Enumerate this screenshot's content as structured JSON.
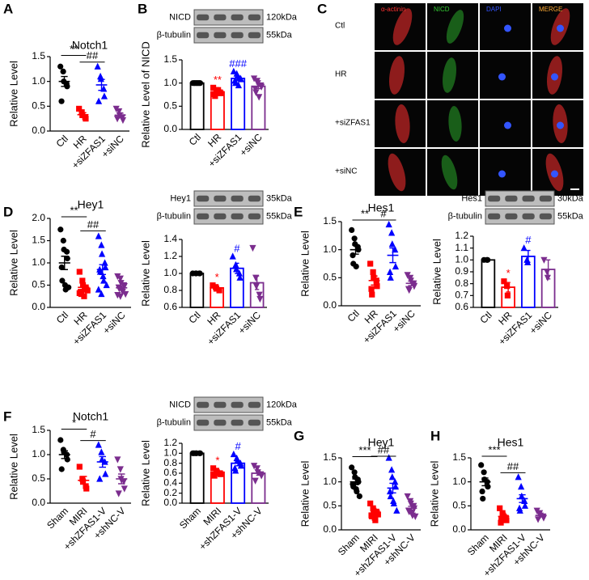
{
  "panel_letters": [
    "A",
    "B",
    "C",
    "D",
    "E",
    "F",
    "G",
    "H"
  ],
  "microscopy": {
    "columns": [
      "α-actinin",
      "NICD",
      "DAPI",
      "MERGE"
    ],
    "column_colors": [
      "#ff3030",
      "#33cc33",
      "#3355ff",
      "#ffaa33"
    ],
    "rows": [
      "Ctl",
      "HR",
      "+siZFAS1",
      "+siNC"
    ]
  },
  "chart_data": [
    {
      "type": "dot",
      "title": "Notch1",
      "ylabel": "Relative Level",
      "categories": [
        "Ctl",
        "HR",
        "+siZFAS1",
        "+siNC"
      ],
      "colors": [
        "#000000",
        "#ff0000",
        "#0000ff",
        "#7b2d8e"
      ],
      "markers": [
        "circle",
        "square",
        "triangle-up",
        "triangle-down"
      ],
      "points": [
        [
          1.3,
          1.2,
          1.0,
          0.95,
          0.9,
          0.6
        ],
        [
          0.45,
          0.38,
          0.32,
          0.28,
          0.25
        ],
        [
          1.3,
          1.1,
          1.05,
          0.85,
          0.7,
          0.6
        ],
        [
          0.45,
          0.4,
          0.32,
          0.28,
          0.22,
          0.25
        ]
      ],
      "means": [
        1.0,
        0.33,
        0.93,
        0.32
      ],
      "errors": [
        0.1,
        0.04,
        0.11,
        0.04
      ],
      "ylim": [
        0,
        1.5
      ],
      "yticks": [
        {
          "value": 0,
          "label": "0.0"
        },
        0.5,
        {
          "value": 1,
          "label": "1.0"
        },
        1.5
      ],
      "annotations": [
        {
          "label": "**",
          "between": [
            "Ctl",
            "HR"
          ]
        },
        {
          "label": "##",
          "between": [
            "HR",
            "+siZFAS1"
          ]
        }
      ]
    },
    {
      "type": "bar",
      "ylabel": "Relative Level of NICD",
      "categories": [
        "Ctl",
        "HR",
        "+siZFAS1",
        "+siNC"
      ],
      "colors": [
        "#000000",
        "#ff0000",
        "#0000ff",
        "#7b2d8e"
      ],
      "markers": [
        "circle",
        "square",
        "triangle-up",
        "triangle-down"
      ],
      "points": [
        [
          1.0,
          1.0,
          1.0,
          1.0,
          1.0,
          1.0,
          1.0,
          1.0,
          1.0
        ],
        [
          0.9,
          0.85,
          0.82,
          0.8,
          0.78,
          0.76,
          0.72,
          0.85
        ],
        [
          1.25,
          1.2,
          1.15,
          1.1,
          1.08,
          1.05,
          1.0,
          0.95,
          1.1
        ],
        [
          1.1,
          1.05,
          1.0,
          0.95,
          0.92,
          0.88,
          0.8,
          0.7
        ]
      ],
      "means": [
        1.0,
        0.81,
        1.1,
        0.93
      ],
      "errors": [
        0,
        0.02,
        0.03,
        0.05
      ],
      "ylim": [
        0,
        1.5
      ],
      "yticks": [
        {
          "value": 0,
          "label": "0.0"
        },
        0.5,
        {
          "value": 1,
          "label": "1.0"
        },
        1.5
      ],
      "annotations": [
        {
          "label": "**",
          "over": "HR"
        },
        {
          "label": "###",
          "over": "+siZFAS1"
        }
      ],
      "blot": [
        {
          "label": "NICD",
          "size": "120kDa"
        },
        {
          "label": "β-tubulin",
          "size": "55kDa"
        }
      ]
    },
    {
      "type": "dot",
      "title": "Hey1",
      "ylabel": "Relative Level",
      "categories": [
        "Ctl",
        "HR",
        "+siZFAS1",
        "+siNC"
      ],
      "colors": [
        "#000000",
        "#ff0000",
        "#0000ff",
        "#7b2d8e"
      ],
      "markers": [
        "circle",
        "square",
        "triangle-up",
        "triangle-down"
      ],
      "points": [
        [
          1.75,
          1.5,
          1.3,
          1.25,
          1.1,
          0.9,
          0.6,
          0.5,
          0.4,
          0.45
        ],
        [
          0.8,
          0.6,
          0.5,
          0.45,
          0.4,
          0.35,
          0.3,
          0.25,
          0.42,
          0.38,
          0.32
        ],
        [
          1.6,
          1.4,
          1.2,
          1.0,
          0.9,
          0.85,
          0.8,
          0.7,
          0.6,
          0.5,
          0.4,
          0.3
        ],
        [
          0.7,
          0.65,
          0.55,
          0.5,
          0.48,
          0.45,
          0.42,
          0.4,
          0.35,
          0.3,
          0.28,
          0.25
        ]
      ],
      "means": [
        1.0,
        0.45,
        0.85,
        0.44
      ],
      "errors": [
        0.15,
        0.05,
        0.11,
        0.04
      ],
      "ylim": [
        0,
        2
      ],
      "yticks": [
        {
          "value": 0,
          "label": "0.0"
        },
        0.5,
        {
          "value": 1,
          "label": "1.0"
        },
        1.5,
        {
          "value": 2,
          "label": "2.0"
        }
      ],
      "annotations": [
        {
          "label": "**",
          "between": [
            "Ctl",
            "HR"
          ]
        },
        {
          "label": "##",
          "between": [
            "HR",
            "+siZFAS1"
          ]
        }
      ]
    },
    {
      "type": "bar",
      "ylabel": "Relative Level",
      "categories": [
        "Ctl",
        "HR",
        "+siZFAS1",
        "+siNC"
      ],
      "colors": [
        "#000000",
        "#ff0000",
        "#0000ff",
        "#7b2d8e"
      ],
      "markers": [
        "circle",
        "square",
        "triangle-up",
        "triangle-down"
      ],
      "points": [
        [
          1.0,
          1.0,
          1.0,
          1.0,
          1.0
        ],
        [
          0.86,
          0.84,
          0.82,
          0.8
        ],
        [
          1.2,
          1.1,
          1.05,
          1.0,
          0.95
        ],
        [
          1.3,
          0.95,
          0.85,
          0.75,
          0.7
        ]
      ],
      "means": [
        1.0,
        0.83,
        1.06,
        0.89
      ],
      "errors": [
        0,
        0.02,
        0.06,
        0.08
      ],
      "ylim": [
        0.6,
        1.4
      ],
      "yticks": [
        0.6,
        0.8,
        {
          "value": 1,
          "label": "1.0"
        },
        1.2,
        1.4
      ],
      "annotations": [
        {
          "label": "*",
          "over": "HR"
        },
        {
          "label": "#",
          "over": "+siZFAS1"
        }
      ],
      "blot": [
        {
          "label": "Hey1",
          "size": "35kDa"
        },
        {
          "label": "β-tubulin",
          "size": "55kDa"
        }
      ]
    },
    {
      "type": "dot",
      "title": "Hes1",
      "ylabel": "Relative Level",
      "categories": [
        "Ctl",
        "HR",
        "+siZFAS1",
        "+siNC"
      ],
      "colors": [
        "#000000",
        "#ff0000",
        "#0000ff",
        "#7b2d8e"
      ],
      "markers": [
        "circle",
        "square",
        "triangle-up",
        "triangle-down"
      ],
      "points": [
        [
          1.35,
          1.2,
          1.1,
          1.05,
          1.0,
          0.9,
          0.75,
          0.7
        ],
        [
          0.75,
          0.6,
          0.5,
          0.45,
          0.35,
          0.3,
          0.2
        ],
        [
          1.45,
          1.3,
          1.1,
          1.0,
          0.7,
          0.6,
          0.5
        ],
        [
          0.55,
          0.5,
          0.45,
          0.4,
          0.35,
          0.3,
          0.28
        ]
      ],
      "means": [
        1.0,
        0.45,
        0.9,
        0.4
      ],
      "errors": [
        0.08,
        0.08,
        0.13,
        0.04
      ],
      "ylim": [
        0,
        1.5
      ],
      "yticks": [
        {
          "value": 0,
          "label": "0.0"
        },
        0.5,
        {
          "value": 1,
          "label": "1.0"
        },
        1.5
      ],
      "annotations": [
        {
          "label": "**",
          "between": [
            "Ctl",
            "HR"
          ]
        },
        {
          "label": "#",
          "between": [
            "HR",
            "+siZFAS1"
          ]
        }
      ]
    },
    {
      "type": "bar",
      "ylabel": "Relative Level",
      "categories": [
        "Ctl",
        "HR",
        "+siZFAS1",
        "+siNC"
      ],
      "colors": [
        "#000000",
        "#ff0000",
        "#0000ff",
        "#7b2d8e"
      ],
      "markers": [
        "circle",
        "square",
        "triangle-up",
        "triangle-down"
      ],
      "points": [
        [
          1.0,
          1.0,
          1.0
        ],
        [
          0.82,
          0.78,
          0.7
        ],
        [
          1.1,
          1.0,
          0.98
        ],
        [
          1.0,
          0.9,
          0.85
        ]
      ],
      "means": [
        1.0,
        0.77,
        1.03,
        0.92
      ],
      "errors": [
        0,
        0.04,
        0.05,
        0.08
      ],
      "ylim": [
        0.6,
        1.2
      ],
      "yticks": [
        0.6,
        0.7,
        0.8,
        0.9,
        {
          "value": 1,
          "label": "1.0"
        },
        1.1,
        1.2
      ],
      "annotations": [
        {
          "label": "*",
          "over": "HR"
        },
        {
          "label": "#",
          "over": "+siZFAS1"
        }
      ],
      "blot": [
        {
          "label": "Hes1",
          "size": "30kDa"
        },
        {
          "label": "β-tubulin",
          "size": "55kDa"
        }
      ]
    },
    {
      "type": "dot",
      "title": "Notch1",
      "ylabel": "Relative Level",
      "categories": [
        "Sham",
        "MIRI",
        "+shZFAS1-V",
        "+shNC-V"
      ],
      "colors": [
        "#000000",
        "#ff0000",
        "#0000ff",
        "#7b2d8e"
      ],
      "markers": [
        "circle",
        "square",
        "triangle-up",
        "triangle-down"
      ],
      "points": [
        [
          1.3,
          1.1,
          1.05,
          1.0,
          0.9,
          0.7
        ],
        [
          0.75,
          0.5,
          0.45,
          0.35,
          0.3
        ],
        [
          1.2,
          1.05,
          0.9,
          0.85,
          0.6,
          0.5
        ],
        [
          0.9,
          0.7,
          0.5,
          0.45,
          0.3,
          0.2
        ]
      ],
      "means": [
        1.0,
        0.47,
        0.85,
        0.5
      ],
      "errors": [
        0.08,
        0.08,
        0.11,
        0.1
      ],
      "ylim": [
        0,
        1.5
      ],
      "yticks": [
        {
          "value": 0,
          "label": "0.0"
        },
        0.5,
        {
          "value": 1,
          "label": "1.0"
        },
        1.5
      ],
      "annotations": [
        {
          "label": "*",
          "between": [
            "Sham",
            "MIRI"
          ]
        },
        {
          "label": "#",
          "between": [
            "MIRI",
            "+shZFAS1-V"
          ]
        }
      ]
    },
    {
      "type": "bar",
      "ylabel": "Relative Level",
      "categories": [
        "Sham",
        "MIRI",
        "+shZFAS1-V",
        "+shNC-V"
      ],
      "colors": [
        "#000000",
        "#ff0000",
        "#0000ff",
        "#7b2d8e"
      ],
      "markers": [
        "circle",
        "square",
        "triangle-up",
        "triangle-down"
      ],
      "points": [
        [
          1.0,
          1.0,
          1.0,
          1.0,
          1.0,
          1.0
        ],
        [
          0.7,
          0.65,
          0.62,
          0.6,
          0.58,
          0.55
        ],
        [
          0.98,
          0.9,
          0.85,
          0.8,
          0.75,
          0.7,
          0.65
        ],
        [
          0.75,
          0.7,
          0.62,
          0.58,
          0.55,
          0.45
        ]
      ],
      "means": [
        1.0,
        0.62,
        0.8,
        0.6
      ],
      "errors": [
        0,
        0.03,
        0.05,
        0.04
      ],
      "ylim": [
        0,
        1.2
      ],
      "yticks": [
        {
          "value": 0,
          "label": "0.0"
        },
        0.2,
        0.4,
        0.6,
        0.8,
        {
          "value": 1,
          "label": "1.0"
        },
        1.2
      ],
      "annotations": [
        {
          "label": "*",
          "over": "MIRI"
        },
        {
          "label": "#",
          "over": "+shZFAS1-V"
        }
      ],
      "blot": [
        {
          "label": "NICD",
          "size": "120kDa"
        },
        {
          "label": "β-tubulin",
          "size": "55kDa"
        }
      ]
    },
    {
      "type": "dot",
      "title": "Hey1",
      "ylabel": "Relative Level",
      "categories": [
        "Sham",
        "MIRI",
        "+shZFAS1-V",
        "+shNC-V"
      ],
      "colors": [
        "#000000",
        "#ff0000",
        "#0000ff",
        "#7b2d8e"
      ],
      "markers": [
        "circle",
        "square",
        "triangle-up",
        "triangle-down"
      ],
      "points": [
        [
          1.3,
          1.2,
          1.1,
          1.05,
          1.0,
          0.95,
          0.9,
          0.85,
          0.8,
          0.7
        ],
        [
          0.55,
          0.45,
          0.4,
          0.38,
          0.35,
          0.3,
          0.28,
          0.25,
          0.2,
          0.32
        ],
        [
          1.5,
          1.25,
          1.1,
          1.0,
          0.9,
          0.8,
          0.7,
          0.6,
          0.55,
          0.4
        ],
        [
          0.7,
          0.6,
          0.55,
          0.5,
          0.45,
          0.4,
          0.38,
          0.35,
          0.3,
          0.28
        ]
      ],
      "means": [
        1.0,
        0.35,
        0.87,
        0.45
      ],
      "errors": [
        0.06,
        0.03,
        0.1,
        0.04
      ],
      "ylim": [
        0,
        1.5
      ],
      "yticks": [
        {
          "value": 0,
          "label": "0.0"
        },
        0.5,
        {
          "value": 1,
          "label": "1.0"
        },
        1.5
      ],
      "annotations": [
        {
          "label": "***",
          "between": [
            "Sham",
            "MIRI"
          ]
        },
        {
          "label": "##",
          "between": [
            "MIRI",
            "+shZFAS1-V"
          ]
        }
      ]
    },
    {
      "type": "dot",
      "title": "Hes1",
      "ylabel": "Relative Level",
      "categories": [
        "Sham",
        "MIRI",
        "+shZFAS1-V",
        "+shNC-V"
      ],
      "colors": [
        "#000000",
        "#ff0000",
        "#0000ff",
        "#7b2d8e"
      ],
      "markers": [
        "circle",
        "square",
        "triangle-up",
        "triangle-down"
      ],
      "points": [
        [
          1.35,
          1.2,
          1.05,
          1.0,
          0.9,
          0.8,
          0.65
        ],
        [
          0.45,
          0.35,
          0.3,
          0.25,
          0.2,
          0.15,
          0.22
        ],
        [
          1.1,
          0.9,
          0.7,
          0.6,
          0.5,
          0.45,
          0.4
        ],
        [
          0.4,
          0.35,
          0.3,
          0.28,
          0.25,
          0.22
        ]
      ],
      "means": [
        1.0,
        0.28,
        0.65,
        0.3
      ],
      "errors": [
        0.08,
        0.04,
        0.08,
        0.03
      ],
      "ylim": [
        0,
        1.5
      ],
      "yticks": [
        {
          "value": 0,
          "label": "0.0"
        },
        0.5,
        {
          "value": 1,
          "label": "1.0"
        },
        1.5
      ],
      "annotations": [
        {
          "label": "***",
          "between": [
            "Sham",
            "MIRI"
          ]
        },
        {
          "label": "##",
          "between": [
            "MIRI",
            "+shZFAS1-V"
          ]
        }
      ]
    }
  ]
}
